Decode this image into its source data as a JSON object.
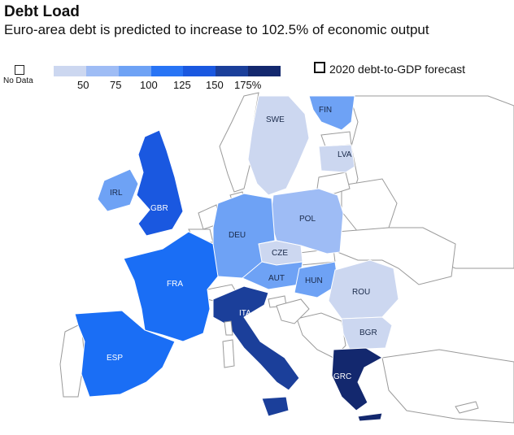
{
  "header": {
    "title": "Debt Load",
    "subtitle": "Euro-area debt is predicted to increase to 102.5% of economic output"
  },
  "legend": {
    "no_data_label": "No Data",
    "scale_colors": [
      "#ccd7f0",
      "#9ebcf5",
      "#6ea2f5",
      "#2874f5",
      "#1a58e0",
      "#1b3f9a",
      "#13286e"
    ],
    "ticks": [
      "50",
      "75",
      "100",
      "125",
      "150",
      "175%"
    ],
    "forecast_label": "2020 debt-to-GDP forecast"
  },
  "countries": [
    {
      "code": "FIN",
      "label": "FIN",
      "color": "#6ea2f5"
    },
    {
      "code": "SWE",
      "label": "SWE",
      "color": "#ccd7f0"
    },
    {
      "code": "LVA",
      "label": "LVA",
      "color": "#ccd7f0"
    },
    {
      "code": "IRL",
      "label": "IRL",
      "color": "#6ea2f5"
    },
    {
      "code": "GBR",
      "label": "GBR",
      "color": "#1a58e0"
    },
    {
      "code": "POL",
      "label": "POL",
      "color": "#9ebcf5"
    },
    {
      "code": "DEU",
      "label": "DEU",
      "color": "#6ea2f5"
    },
    {
      "code": "CZE",
      "label": "CZE",
      "color": "#ccd7f0"
    },
    {
      "code": "AUT",
      "label": "AUT",
      "color": "#6ea2f5"
    },
    {
      "code": "HUN",
      "label": "HUN",
      "color": "#6ea2f5"
    },
    {
      "code": "ROU",
      "label": "ROU",
      "color": "#ccd7f0"
    },
    {
      "code": "FRA",
      "label": "FRA",
      "color": "#1a6ef5"
    },
    {
      "code": "ITA",
      "label": "ITA",
      "color": "#1b3f9a"
    },
    {
      "code": "BGR",
      "label": "BGR",
      "color": "#ccd7f0"
    },
    {
      "code": "ESP",
      "label": "ESP",
      "color": "#1a6ef5"
    },
    {
      "code": "GRC",
      "label": "GRC",
      "color": "#13286e"
    }
  ]
}
